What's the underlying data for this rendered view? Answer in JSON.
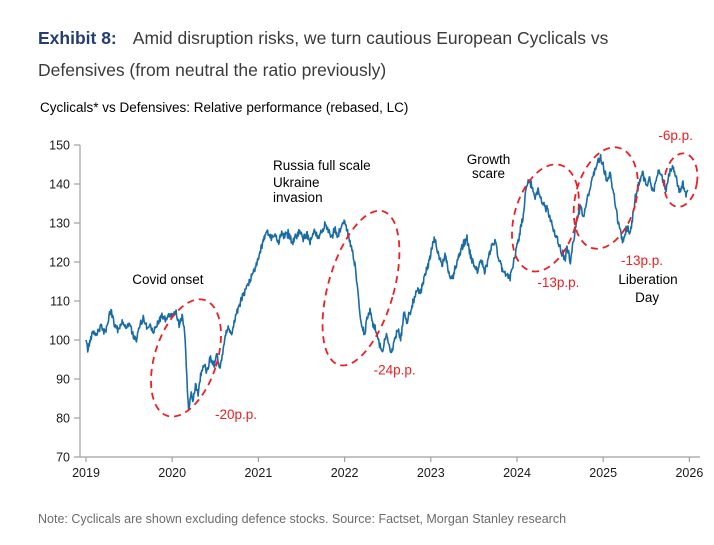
{
  "header": {
    "exhibit_label": "Exhibit 8:",
    "title_rest": "Amid disruption risks, we turn cautious European Cyclicals vs Defensives (from neutral the ratio previously)"
  },
  "note": "Note: Cyclicals are shown excluding defence stocks. Source: Factset, Morgan Stanley research",
  "chart_data": {
    "type": "line",
    "title": "Cyclicals* vs Defensives: Relative performance (rebased, LC)",
    "xlabel": "",
    "ylabel": "",
    "xlim": [
      2019,
      2026.15
    ],
    "ylim": [
      70,
      150
    ],
    "x_ticks": [
      2019,
      2020,
      2021,
      2022,
      2023,
      2024,
      2025,
      2026
    ],
    "y_ticks": [
      70,
      80,
      90,
      100,
      110,
      120,
      130,
      140,
      150
    ],
    "grid": false,
    "legend": "none",
    "line_color": "#1a6ca4",
    "annotation_color": "#ed1f24",
    "axis_color": "#a0a0a0",
    "noise_amplitude": 0.9,
    "series": [
      {
        "name": "Cyclicals vs Defensives relative performance (rebased)",
        "points": [
          [
            2019.0,
            100
          ],
          [
            2019.02,
            97.5
          ],
          [
            2019.08,
            102.5
          ],
          [
            2019.12,
            101.5
          ],
          [
            2019.17,
            103.5
          ],
          [
            2019.22,
            102.0
          ],
          [
            2019.29,
            107.5
          ],
          [
            2019.33,
            104.0
          ],
          [
            2019.38,
            102.5
          ],
          [
            2019.42,
            105.0
          ],
          [
            2019.46,
            103.0
          ],
          [
            2019.5,
            104.5
          ],
          [
            2019.55,
            101.0
          ],
          [
            2019.58,
            99.5
          ],
          [
            2019.63,
            104.0
          ],
          [
            2019.67,
            105.5
          ],
          [
            2019.71,
            103.0
          ],
          [
            2019.75,
            104.0
          ],
          [
            2019.79,
            102.0
          ],
          [
            2019.83,
            104.5
          ],
          [
            2019.88,
            106.0
          ],
          [
            2019.92,
            105.0
          ],
          [
            2019.96,
            106.5
          ],
          [
            2020.0,
            106.0
          ],
          [
            2020.04,
            107.5
          ],
          [
            2020.08,
            104.0
          ],
          [
            2020.12,
            106.5
          ],
          [
            2020.15,
            100.0
          ],
          [
            2020.17,
            90.0
          ],
          [
            2020.19,
            81.5
          ],
          [
            2020.22,
            87.0
          ],
          [
            2020.24,
            83.5
          ],
          [
            2020.27,
            88.5
          ],
          [
            2020.3,
            86.5
          ],
          [
            2020.33,
            91.0
          ],
          [
            2020.37,
            93.5
          ],
          [
            2020.4,
            92.0
          ],
          [
            2020.44,
            95.5
          ],
          [
            2020.48,
            94.0
          ],
          [
            2020.52,
            95.5
          ],
          [
            2020.55,
            92.5
          ],
          [
            2020.58,
            96.0
          ],
          [
            2020.62,
            101.5
          ],
          [
            2020.65,
            103.0
          ],
          [
            2020.69,
            101.0
          ],
          [
            2020.73,
            106.0
          ],
          [
            2020.77,
            108.5
          ],
          [
            2020.81,
            110.5
          ],
          [
            2020.85,
            112.5
          ],
          [
            2020.9,
            115.0
          ],
          [
            2020.94,
            117.5
          ],
          [
            2021.0,
            121.0
          ],
          [
            2021.06,
            125.5
          ],
          [
            2021.1,
            128.0
          ],
          [
            2021.15,
            126.0
          ],
          [
            2021.19,
            127.5
          ],
          [
            2021.23,
            125.0
          ],
          [
            2021.27,
            128.0
          ],
          [
            2021.31,
            126.5
          ],
          [
            2021.35,
            127.5
          ],
          [
            2021.4,
            125.0
          ],
          [
            2021.44,
            126.5
          ],
          [
            2021.48,
            128.5
          ],
          [
            2021.52,
            126.0
          ],
          [
            2021.56,
            127.0
          ],
          [
            2021.6,
            125.5
          ],
          [
            2021.65,
            128.0
          ],
          [
            2021.69,
            126.0
          ],
          [
            2021.73,
            127.5
          ],
          [
            2021.77,
            129.5
          ],
          [
            2021.81,
            128.0
          ],
          [
            2021.85,
            126.0
          ],
          [
            2021.88,
            128.5
          ],
          [
            2021.92,
            126.5
          ],
          [
            2021.96,
            129.0
          ],
          [
            2022.0,
            130.5
          ],
          [
            2022.04,
            127.0
          ],
          [
            2022.08,
            123.5
          ],
          [
            2022.12,
            119.0
          ],
          [
            2022.15,
            113.0
          ],
          [
            2022.17,
            108.0
          ],
          [
            2022.2,
            104.0
          ],
          [
            2022.23,
            101.0
          ],
          [
            2022.26,
            105.5
          ],
          [
            2022.3,
            107.5
          ],
          [
            2022.33,
            104.0
          ],
          [
            2022.37,
            102.0
          ],
          [
            2022.4,
            99.0
          ],
          [
            2022.44,
            97.0
          ],
          [
            2022.48,
            101.5
          ],
          [
            2022.51,
            99.5
          ],
          [
            2022.54,
            96.5
          ],
          [
            2022.58,
            100.0
          ],
          [
            2022.62,
            102.5
          ],
          [
            2022.65,
            100.0
          ],
          [
            2022.69,
            107.0
          ],
          [
            2022.72,
            104.5
          ],
          [
            2022.77,
            108.0
          ],
          [
            2022.81,
            111.0
          ],
          [
            2022.85,
            113.5
          ],
          [
            2022.88,
            112.0
          ],
          [
            2022.92,
            115.5
          ],
          [
            2022.96,
            118.5
          ],
          [
            2023.0,
            122.0
          ],
          [
            2023.04,
            126.0
          ],
          [
            2023.08,
            122.5
          ],
          [
            2023.13,
            119.5
          ],
          [
            2023.17,
            121.5
          ],
          [
            2023.21,
            117.0
          ],
          [
            2023.25,
            115.5
          ],
          [
            2023.29,
            119.0
          ],
          [
            2023.33,
            122.0
          ],
          [
            2023.38,
            125.0
          ],
          [
            2023.42,
            126.0
          ],
          [
            2023.46,
            121.5
          ],
          [
            2023.5,
            119.5
          ],
          [
            2023.54,
            118.0
          ],
          [
            2023.58,
            120.5
          ],
          [
            2023.63,
            117.5
          ],
          [
            2023.67,
            121.0
          ],
          [
            2023.71,
            124.5
          ],
          [
            2023.75,
            125.5
          ],
          [
            2023.79,
            120.5
          ],
          [
            2023.83,
            118.0
          ],
          [
            2023.88,
            116.5
          ],
          [
            2023.92,
            116.0
          ],
          [
            2023.96,
            120.0
          ],
          [
            2024.0,
            124.0
          ],
          [
            2024.04,
            128.0
          ],
          [
            2024.08,
            133.0
          ],
          [
            2024.1,
            138.0
          ],
          [
            2024.13,
            141.5
          ],
          [
            2024.17,
            139.5
          ],
          [
            2024.21,
            137.0
          ],
          [
            2024.25,
            138.5
          ],
          [
            2024.29,
            135.5
          ],
          [
            2024.33,
            134.0
          ],
          [
            2024.37,
            132.5
          ],
          [
            2024.4,
            130.0
          ],
          [
            2024.44,
            127.5
          ],
          [
            2024.48,
            125.0
          ],
          [
            2024.52,
            122.5
          ],
          [
            2024.56,
            120.5
          ],
          [
            2024.58,
            124.0
          ],
          [
            2024.62,
            120.0
          ],
          [
            2024.66,
            126.5
          ],
          [
            2024.7,
            131.5
          ],
          [
            2024.74,
            134.0
          ],
          [
            2024.77,
            131.0
          ],
          [
            2024.81,
            135.5
          ],
          [
            2024.85,
            139.0
          ],
          [
            2024.89,
            143.0
          ],
          [
            2024.93,
            145.5
          ],
          [
            2024.97,
            147.0
          ],
          [
            2025.01,
            144.0
          ],
          [
            2025.04,
            141.0
          ],
          [
            2025.08,
            142.5
          ],
          [
            2025.12,
            137.5
          ],
          [
            2025.15,
            133.0
          ],
          [
            2025.19,
            128.5
          ],
          [
            2025.23,
            125.0
          ],
          [
            2025.27,
            129.0
          ],
          [
            2025.31,
            127.0
          ],
          [
            2025.35,
            133.0
          ],
          [
            2025.38,
            137.5
          ],
          [
            2025.42,
            140.5
          ],
          [
            2025.46,
            142.5
          ],
          [
            2025.5,
            139.5
          ],
          [
            2025.54,
            141.5
          ],
          [
            2025.58,
            138.0
          ],
          [
            2025.62,
            142.0
          ],
          [
            2025.65,
            144.0
          ],
          [
            2025.69,
            141.0
          ],
          [
            2025.73,
            138.5
          ],
          [
            2025.77,
            143.0
          ],
          [
            2025.81,
            145.0
          ],
          [
            2025.85,
            141.5
          ],
          [
            2025.88,
            138.0
          ],
          [
            2025.92,
            140.0
          ],
          [
            2025.96,
            137.5
          ],
          [
            2025.98,
            138.5
          ]
        ]
      }
    ],
    "annotations": [
      {
        "text": "Covid onset",
        "x": 2019.95,
        "y": 114.4,
        "color": "#000000",
        "align": "middle"
      },
      {
        "text": "-20p.p.",
        "x": 2020.74,
        "y": 79.7,
        "color": "#ed1f24",
        "align": "middle"
      },
      {
        "text": "Russia full scale",
        "x": 2021.17,
        "y": 143.6,
        "color": "#000000",
        "align": "start"
      },
      {
        "text": "Ukraine",
        "x": 2021.17,
        "y": 139.2,
        "color": "#000000",
        "align": "start"
      },
      {
        "text": "invasion",
        "x": 2021.17,
        "y": 135.4,
        "color": "#000000",
        "align": "start"
      },
      {
        "text": "-24p.p.",
        "x": 2022.58,
        "y": 91.2,
        "color": "#ed1f24",
        "align": "middle"
      },
      {
        "text": "Growth",
        "x": 2023.67,
        "y": 145.1,
        "color": "#000000",
        "align": "middle"
      },
      {
        "text": "scare",
        "x": 2023.67,
        "y": 141.5,
        "color": "#000000",
        "align": "middle"
      },
      {
        "text": "-13p.p.",
        "x": 2024.48,
        "y": 113.6,
        "color": "#ed1f24",
        "align": "middle"
      },
      {
        "text": "-13p.p.",
        "x": 2025.45,
        "y": 119.2,
        "color": "#ed1f24",
        "align": "middle"
      },
      {
        "text": "Liberation",
        "x": 2025.52,
        "y": 114.4,
        "color": "#000000",
        "align": "middle"
      },
      {
        "text": "Day",
        "x": 2025.51,
        "y": 109.7,
        "color": "#000000",
        "align": "middle"
      },
      {
        "text": "-6p.p.",
        "x": 2025.84,
        "y": 151.3,
        "color": "#ed1f24",
        "align": "middle"
      }
    ],
    "drawdown_ellipses": [
      {
        "label": "covid-drawdown",
        "cx": 2020.16,
        "cy": 95.4,
        "rx_years": 0.36,
        "ry_units": 15.6,
        "rotate_deg": 18
      },
      {
        "label": "russia-invasion-drawdown",
        "cx": 2022.19,
        "cy": 113.3,
        "rx_years": 0.38,
        "ry_units": 20.5,
        "rotate_deg": 16
      },
      {
        "label": "growth-scare-drawdown",
        "cx": 2024.33,
        "cy": 131.3,
        "rx_years": 0.36,
        "ry_units": 14.1,
        "rotate_deg": 16
      },
      {
        "label": "liberation-day-drawdown",
        "cx": 2025.03,
        "cy": 136.4,
        "rx_years": 0.35,
        "ry_units": 13.3,
        "rotate_deg": 15
      },
      {
        "label": "latest-drawdown",
        "cx": 2025.9,
        "cy": 141.0,
        "rx_years": 0.19,
        "ry_units": 6.9,
        "rotate_deg": 8
      }
    ]
  }
}
